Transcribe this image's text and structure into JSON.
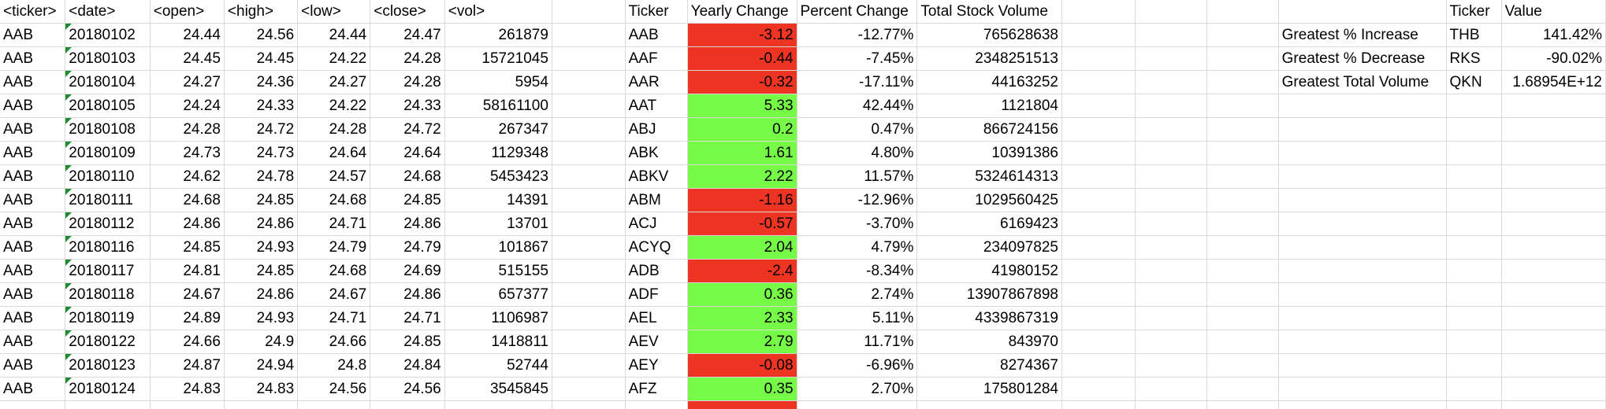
{
  "raw_headers": [
    "<ticker>",
    "<date>",
    "<open>",
    "<high>",
    "<low>",
    "<close>",
    "<vol>"
  ],
  "raw_rows": [
    [
      "AAB",
      "20180102",
      "24.44",
      "24.56",
      "24.44",
      "24.47",
      "261879"
    ],
    [
      "AAB",
      "20180103",
      "24.45",
      "24.45",
      "24.22",
      "24.28",
      "15721045"
    ],
    [
      "AAB",
      "20180104",
      "24.27",
      "24.36",
      "24.27",
      "24.28",
      "5954"
    ],
    [
      "AAB",
      "20180105",
      "24.24",
      "24.33",
      "24.22",
      "24.33",
      "58161100"
    ],
    [
      "AAB",
      "20180108",
      "24.28",
      "24.72",
      "24.28",
      "24.72",
      "267347"
    ],
    [
      "AAB",
      "20180109",
      "24.73",
      "24.73",
      "24.64",
      "24.64",
      "1129348"
    ],
    [
      "AAB",
      "20180110",
      "24.62",
      "24.78",
      "24.57",
      "24.68",
      "5453423"
    ],
    [
      "AAB",
      "20180111",
      "24.68",
      "24.85",
      "24.68",
      "24.85",
      "14391"
    ],
    [
      "AAB",
      "20180112",
      "24.86",
      "24.86",
      "24.71",
      "24.86",
      "13701"
    ],
    [
      "AAB",
      "20180116",
      "24.85",
      "24.93",
      "24.79",
      "24.79",
      "101867"
    ],
    [
      "AAB",
      "20180117",
      "24.81",
      "24.85",
      "24.68",
      "24.69",
      "515155"
    ],
    [
      "AAB",
      "20180118",
      "24.67",
      "24.86",
      "24.67",
      "24.86",
      "657377"
    ],
    [
      "AAB",
      "20180119",
      "24.89",
      "24.93",
      "24.71",
      "24.71",
      "1106987"
    ],
    [
      "AAB",
      "20180122",
      "24.66",
      "24.9",
      "24.66",
      "24.85",
      "1418811"
    ],
    [
      "AAB",
      "20180123",
      "24.87",
      "24.94",
      "24.8",
      "24.84",
      "52744"
    ],
    [
      "AAB",
      "20180124",
      "24.83",
      "24.83",
      "24.56",
      "24.56",
      "3545845"
    ]
  ],
  "summary_headers": [
    "Ticker",
    "Yearly Change",
    "Percent Change",
    "Total Stock Volume"
  ],
  "summary_rows": [
    {
      "ticker": "AAB",
      "change": "-3.12",
      "pct": "-12.77%",
      "vol": "765628638",
      "status": "neg"
    },
    {
      "ticker": "AAF",
      "change": "-0.44",
      "pct": "-7.45%",
      "vol": "2348251513",
      "status": "neg"
    },
    {
      "ticker": "AAR",
      "change": "-0.32",
      "pct": "-17.11%",
      "vol": "44163252",
      "status": "neg"
    },
    {
      "ticker": "AAT",
      "change": "5.33",
      "pct": "42.44%",
      "vol": "1121804",
      "status": "pos"
    },
    {
      "ticker": "ABJ",
      "change": "0.2",
      "pct": "0.47%",
      "vol": "866724156",
      "status": "pos"
    },
    {
      "ticker": "ABK",
      "change": "1.61",
      "pct": "4.80%",
      "vol": "10391386",
      "status": "pos"
    },
    {
      "ticker": "ABKV",
      "change": "2.22",
      "pct": "11.57%",
      "vol": "5324614313",
      "status": "pos"
    },
    {
      "ticker": "ABM",
      "change": "-1.16",
      "pct": "-12.96%",
      "vol": "1029560425",
      "status": "neg"
    },
    {
      "ticker": "ACJ",
      "change": "-0.57",
      "pct": "-3.70%",
      "vol": "6169423",
      "status": "neg"
    },
    {
      "ticker": "ACYQ",
      "change": "2.04",
      "pct": "4.79%",
      "vol": "234097825",
      "status": "pos"
    },
    {
      "ticker": "ADB",
      "change": "-2.4",
      "pct": "-8.34%",
      "vol": "41980152",
      "status": "neg"
    },
    {
      "ticker": "ADF",
      "change": "0.36",
      "pct": "2.74%",
      "vol": "13907867898",
      "status": "pos"
    },
    {
      "ticker": "AEL",
      "change": "2.33",
      "pct": "5.11%",
      "vol": "4339867319",
      "status": "pos"
    },
    {
      "ticker": "AEV",
      "change": "2.79",
      "pct": "11.71%",
      "vol": "843970",
      "status": "pos"
    },
    {
      "ticker": "AEY",
      "change": "-0.08",
      "pct": "-6.96%",
      "vol": "8274367",
      "status": "neg"
    },
    {
      "ticker": "AFZ",
      "change": "0.35",
      "pct": "2.70%",
      "vol": "175801284",
      "status": "pos"
    }
  ],
  "greatest_headers": [
    "Ticker",
    "Value"
  ],
  "greatest_rows": [
    {
      "label": "Greatest % Increase",
      "ticker": "THB",
      "value": "141.42%"
    },
    {
      "label": "Greatest % Decrease",
      "ticker": "RKS",
      "value": "-90.02%"
    },
    {
      "label": "Greatest Total Volume",
      "ticker": "QKN",
      "value": "1.68954E+12"
    }
  ],
  "colors": {
    "negative": "#ee3524",
    "positive": "#76fb47",
    "gridline": "#d9d9d9",
    "date_marker": "#1f8a2f"
  }
}
